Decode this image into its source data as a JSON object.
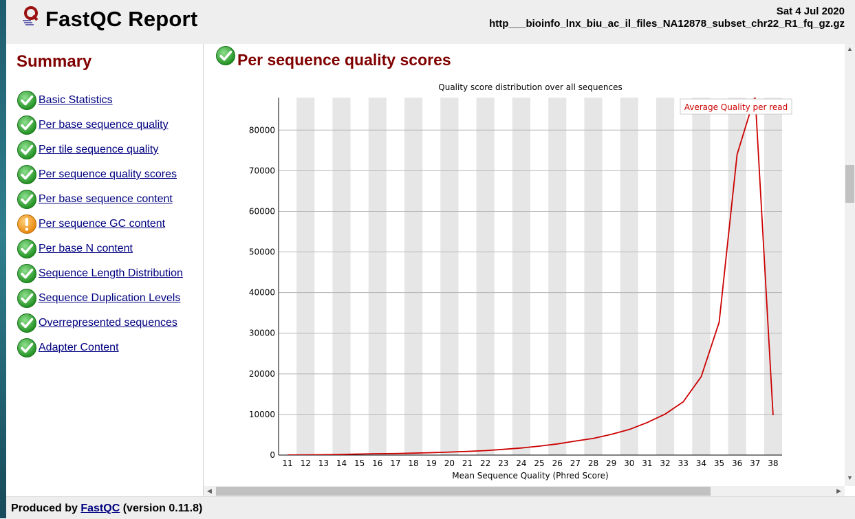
{
  "header": {
    "title": "FastQC Report",
    "date": "Sat 4 Jul 2020",
    "filename": "http___bioinfo_lnx_biu_ac_il_files_NA12878_subset_chr22_R1_fq_gz.gz"
  },
  "summary": {
    "title": "Summary",
    "items": [
      {
        "label": "Basic Statistics",
        "status": "pass"
      },
      {
        "label": "Per base sequence quality",
        "status": "pass"
      },
      {
        "label": "Per tile sequence quality",
        "status": "pass"
      },
      {
        "label": "Per sequence quality scores",
        "status": "pass"
      },
      {
        "label": "Per base sequence content",
        "status": "pass"
      },
      {
        "label": "Per sequence GC content",
        "status": "warn"
      },
      {
        "label": "Per base N content",
        "status": "pass"
      },
      {
        "label": "Sequence Length Distribution",
        "status": "pass"
      },
      {
        "label": "Sequence Duplication Levels",
        "status": "pass"
      },
      {
        "label": "Overrepresented sequences",
        "status": "pass"
      },
      {
        "label": "Adapter Content",
        "status": "pass"
      }
    ]
  },
  "section": {
    "title": "Per sequence quality scores",
    "status": "pass"
  },
  "chart_data": {
    "type": "line",
    "title": "Quality score distribution over all sequences",
    "xlabel": "Mean Sequence Quality (Phred Score)",
    "ylabel": "",
    "categories": [
      "11",
      "12",
      "13",
      "14",
      "15",
      "16",
      "17",
      "18",
      "19",
      "20",
      "21",
      "22",
      "23",
      "24",
      "25",
      "26",
      "27",
      "28",
      "29",
      "30",
      "31",
      "32",
      "33",
      "34",
      "35",
      "36",
      "37",
      "38"
    ],
    "yticks": [
      0,
      10000,
      20000,
      30000,
      40000,
      50000,
      60000,
      70000,
      80000
    ],
    "ylim": [
      0,
      88000
    ],
    "series": [
      {
        "name": "Average Quality per read",
        "color": "#cc0000",
        "values": [
          20,
          40,
          80,
          150,
          250,
          330,
          380,
          470,
          600,
          740,
          900,
          1100,
          1400,
          1750,
          2200,
          2750,
          3450,
          4100,
          5100,
          6300,
          8000,
          10100,
          13100,
          19300,
          32700,
          74000,
          88500,
          9800
        ]
      }
    ],
    "grid": "horizontal",
    "alternating_column_shading": true,
    "legend_position": "top-right"
  },
  "footer": {
    "prefix": "Produced by ",
    "link": "FastQC",
    "suffix": " (version 0.11.8)"
  },
  "colors": {
    "heading": "#800000",
    "link": "#000080",
    "line": "#cc0000",
    "pass": "#2eae2e",
    "warn": "#f29a1b"
  },
  "icons": {
    "pass": "check-icon",
    "warn": "exclamation-icon",
    "logo": "fastqc-logo-icon"
  }
}
